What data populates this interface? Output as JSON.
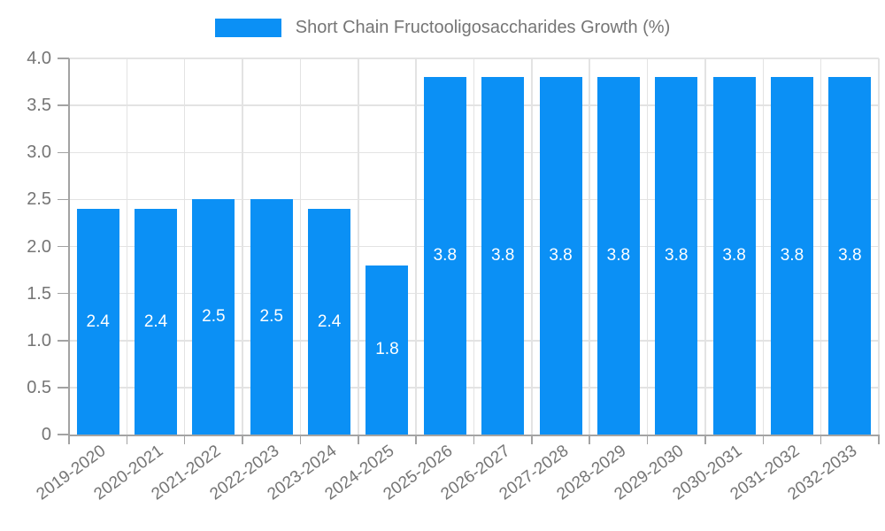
{
  "colors": {
    "bar": "#0b90f5",
    "grid": "#e3e3e3",
    "axis": "#a3a3a3",
    "tick_text": "#757575",
    "bar_label_text": "#ffffff",
    "background": "#ffffff"
  },
  "chart_data": {
    "type": "bar",
    "title": "Short Chain Fructooligosaccharides Growth (%)",
    "legend": [
      "Short Chain Fructooligosaccharides Growth (%)"
    ],
    "legend_position": "top",
    "categories": [
      "2019-2020",
      "2020-2021",
      "2021-2022",
      "2022-2023",
      "2023-2024",
      "2024-2025",
      "2025-2026",
      "2026-2027",
      "2027-2028",
      "2028-2029",
      "2029-2030",
      "2030-2031",
      "2031-2032",
      "2032-2033"
    ],
    "values": [
      2.4,
      2.4,
      2.5,
      2.5,
      2.4,
      1.8,
      3.8,
      3.8,
      3.8,
      3.8,
      3.8,
      3.8,
      3.8,
      3.8
    ],
    "value_labels": [
      "2.4",
      "2.4",
      "2.5",
      "2.5",
      "2.4",
      "1.8",
      "3.8",
      "3.8",
      "3.8",
      "3.8",
      "3.8",
      "3.8",
      "3.8",
      "3.8"
    ],
    "xlabel": "",
    "ylabel": "",
    "ylim": [
      0,
      4
    ],
    "ytick_step": 0.5,
    "ytick_labels": [
      "0",
      "0.5",
      "1.0",
      "1.5",
      "2.0",
      "2.5",
      "3.0",
      "3.5",
      "4.0"
    ],
    "grid": true,
    "bar_color": "#0b90f5",
    "bar_label_color": "#ffffff"
  }
}
